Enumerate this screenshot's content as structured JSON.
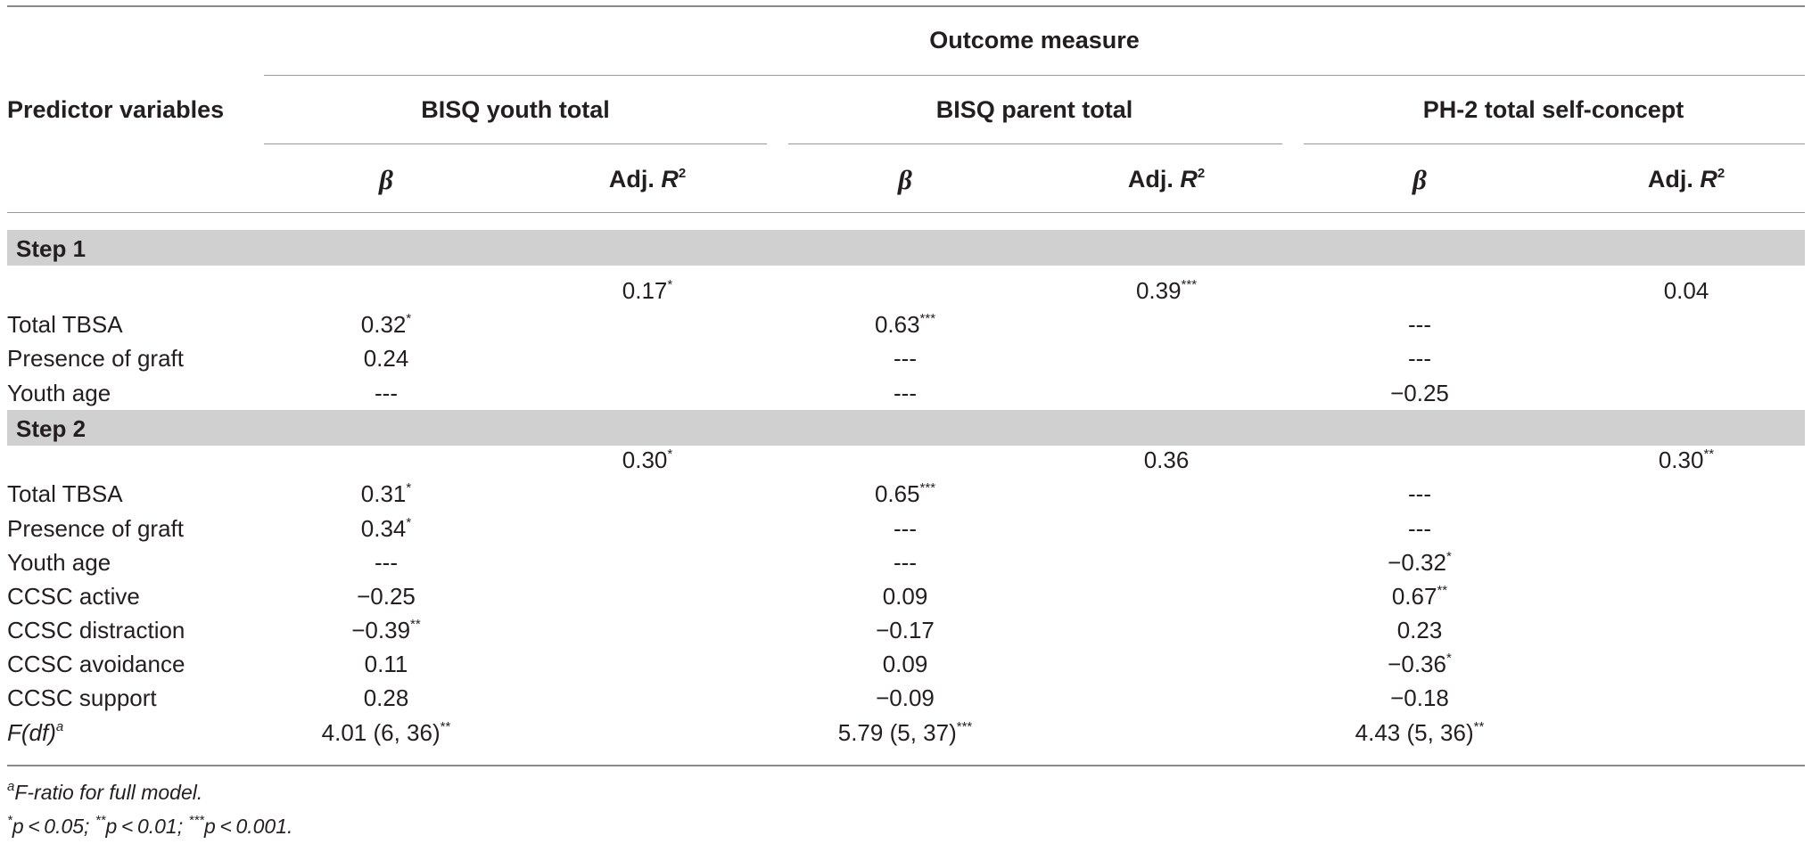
{
  "table": {
    "outcome_measure": "Outcome measure",
    "predictor_header": "Predictor variables",
    "groups": [
      "BISQ youth total",
      "BISQ parent total",
      "PH-2 total self-concept"
    ],
    "beta_symbol": "β",
    "adj_label": "Adj. ",
    "adj_symbol": "R",
    "adj_sup": "2",
    "step1": {
      "label": "Step 1",
      "adj": [
        {
          "v": "0.17",
          "s": "*"
        },
        {
          "v": "0.39",
          "s": "***"
        },
        {
          "v": "0.04",
          "s": ""
        }
      ],
      "rows": [
        {
          "label": "Total TBSA",
          "vals": [
            {
              "v": "0.32",
              "s": "*"
            },
            {
              "v": "0.63",
              "s": "***"
            },
            {
              "v": "---",
              "s": ""
            }
          ]
        },
        {
          "label": "Presence of graft",
          "vals": [
            {
              "v": "0.24",
              "s": ""
            },
            {
              "v": "---",
              "s": ""
            },
            {
              "v": "---",
              "s": ""
            }
          ]
        },
        {
          "label": "Youth age",
          "vals": [
            {
              "v": "---",
              "s": ""
            },
            {
              "v": "---",
              "s": ""
            },
            {
              "v": "−0.25",
              "s": ""
            }
          ]
        }
      ]
    },
    "step2": {
      "label": "Step 2",
      "adj": [
        {
          "v": "0.30",
          "s": "*"
        },
        {
          "v": "0.36",
          "s": ""
        },
        {
          "v": "0.30",
          "s": "**"
        }
      ],
      "rows": [
        {
          "label": "Total TBSA",
          "vals": [
            {
              "v": "0.31",
              "s": "*"
            },
            {
              "v": "0.65",
              "s": "***"
            },
            {
              "v": "---",
              "s": ""
            }
          ]
        },
        {
          "label": "Presence of graft",
          "vals": [
            {
              "v": "0.34",
              "s": "*"
            },
            {
              "v": "---",
              "s": ""
            },
            {
              "v": "---",
              "s": ""
            }
          ]
        },
        {
          "label": "Youth age",
          "vals": [
            {
              "v": "---",
              "s": ""
            },
            {
              "v": "---",
              "s": ""
            },
            {
              "v": "−0.32",
              "s": "*"
            }
          ]
        },
        {
          "label": "CCSC active",
          "vals": [
            {
              "v": "−0.25",
              "s": ""
            },
            {
              "v": "0.09",
              "s": ""
            },
            {
              "v": "0.67",
              "s": "**"
            }
          ]
        },
        {
          "label": "CCSC distraction",
          "vals": [
            {
              "v": "−0.39",
              "s": "**"
            },
            {
              "v": "−0.17",
              "s": ""
            },
            {
              "v": "0.23",
              "s": ""
            }
          ]
        },
        {
          "label": "CCSC avoidance",
          "vals": [
            {
              "v": "0.11",
              "s": ""
            },
            {
              "v": "0.09",
              "s": ""
            },
            {
              "v": "−0.36",
              "s": "*"
            }
          ]
        },
        {
          "label": "CCSC support",
          "vals": [
            {
              "v": "0.28",
              "s": ""
            },
            {
              "v": "−0.09",
              "s": ""
            },
            {
              "v": "−0.18",
              "s": ""
            }
          ]
        }
      ]
    },
    "f_row": {
      "label_main": "F",
      "label_paren": "(df)",
      "label_sup": "a",
      "vals": [
        {
          "v": "4.01 (6, 36)",
          "s": "**"
        },
        {
          "v": "5.79 (5, 37)",
          "s": "***"
        },
        {
          "v": "4.43 (5, 36)",
          "s": "**"
        }
      ]
    }
  },
  "footnotes": {
    "a_mark": "a",
    "a_text": "F-ratio for full model.",
    "p1_mark": "*",
    "p1_text": "p < 0.05; ",
    "p2_mark": "**",
    "p2_text": "p < 0.01; ",
    "p3_mark": "***",
    "p3_text": "p < 0.001."
  }
}
